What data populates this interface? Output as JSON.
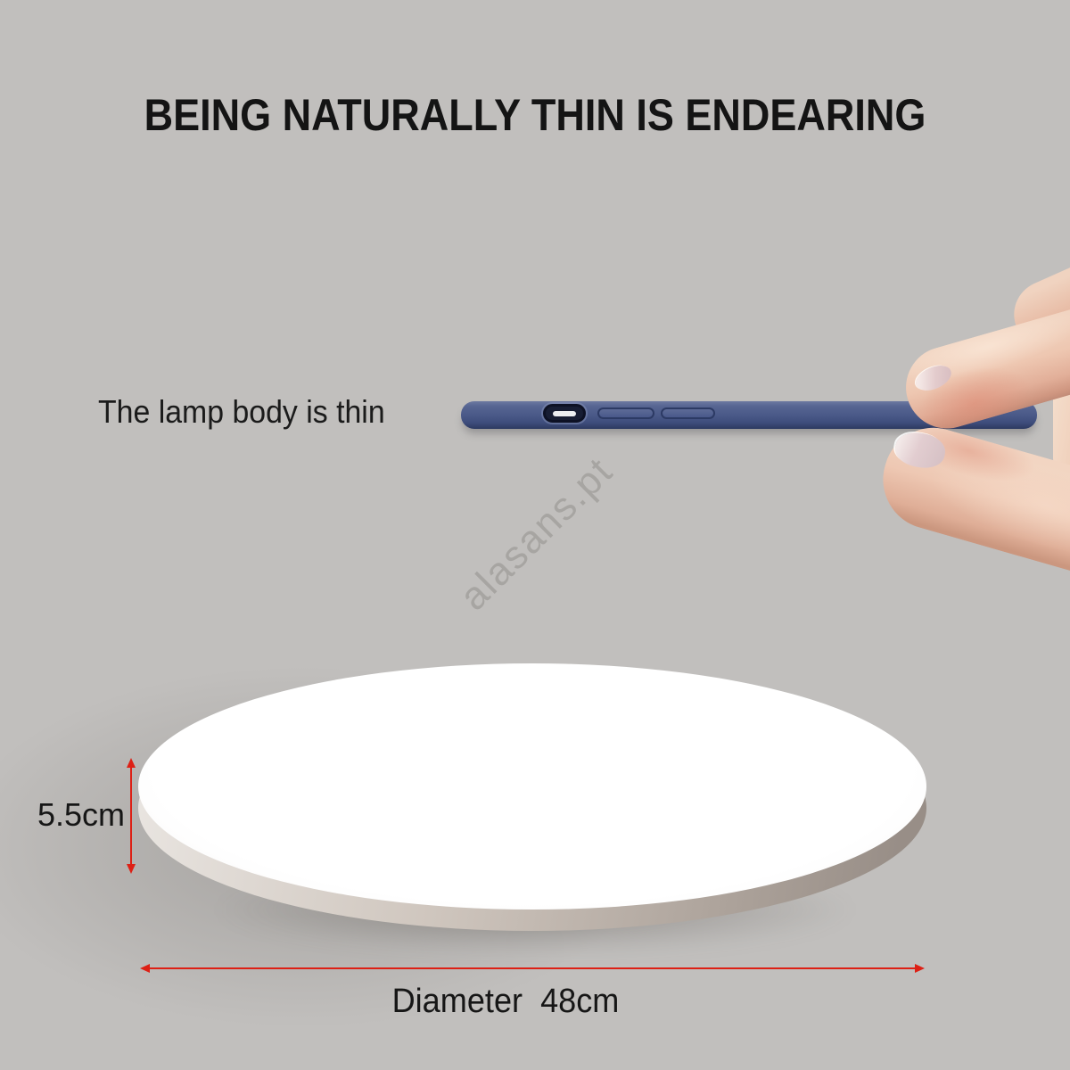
{
  "page": {
    "background_color": "#c1bfbd"
  },
  "title": {
    "text": "BEING NATURALLY THIN IS ENDEARING"
  },
  "callout": {
    "text": "The lamp body is thin"
  },
  "watermark": {
    "text": "alasans.pt"
  },
  "phone": {
    "body_color": "#4b5a89",
    "port": "usb-c-port",
    "slots": [
      "pill-slot-left",
      "pill-slot-right"
    ]
  },
  "lamp": {
    "surface_color": "#ffffff",
    "rim_color": "#ada39b"
  },
  "dimensions": {
    "arrow_color": "#dd2015",
    "thickness": {
      "label": "5.5cm"
    },
    "diameter": {
      "label": "Diameter  48cm"
    }
  }
}
